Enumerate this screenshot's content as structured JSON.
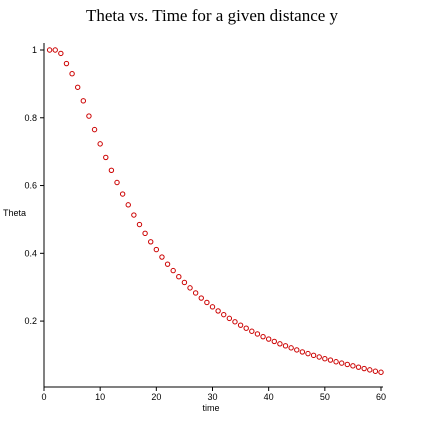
{
  "chart_data": {
    "type": "scatter",
    "title": "Theta vs. Time for a given distance y",
    "xlabel": "time",
    "ylabel": "Theta",
    "xlim": [
      0,
      60
    ],
    "ylim": [
      0.035,
      1.0
    ],
    "xticks": [
      0,
      10,
      20,
      30,
      40,
      50,
      60
    ],
    "yticks": [
      0.2,
      0.4,
      0.6,
      0.8,
      1
    ],
    "grid": false,
    "marker_color": "#cc0000",
    "x": [
      1,
      2,
      3,
      4,
      5,
      6,
      7,
      8,
      9,
      10,
      11,
      12,
      13,
      14,
      15,
      16,
      17,
      18,
      19,
      20,
      21,
      22,
      23,
      24,
      25,
      26,
      27,
      28,
      29,
      30,
      31,
      32,
      33,
      34,
      35,
      36,
      37,
      38,
      39,
      40,
      41,
      42,
      43,
      44,
      45,
      46,
      47,
      48,
      49,
      50,
      51,
      52,
      53,
      54,
      55,
      56,
      57,
      58,
      59,
      60
    ],
    "y": [
      1.0,
      1.0,
      0.99,
      0.96,
      0.93,
      0.89,
      0.85,
      0.805,
      0.765,
      0.723,
      0.683,
      0.645,
      0.609,
      0.575,
      0.543,
      0.513,
      0.485,
      0.459,
      0.434,
      0.411,
      0.389,
      0.368,
      0.349,
      0.331,
      0.314,
      0.298,
      0.283,
      0.268,
      0.255,
      0.242,
      0.23,
      0.219,
      0.208,
      0.198,
      0.188,
      0.179,
      0.17,
      0.162,
      0.154,
      0.147,
      0.14,
      0.133,
      0.127,
      0.121,
      0.115,
      0.109,
      0.104,
      0.099,
      0.094,
      0.089,
      0.085,
      0.08,
      0.076,
      0.072,
      0.068,
      0.064,
      0.06,
      0.056,
      0.052,
      0.049
    ]
  }
}
